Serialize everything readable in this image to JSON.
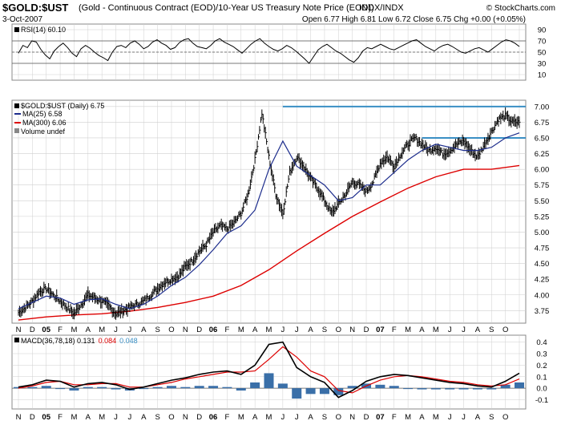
{
  "header": {
    "symbol": "$GOLD:$UST",
    "description": "(Gold - Continuous Contract (EOD)/10-Year US Treasury Note Price (EOD))",
    "exchange": "INDX/INDX",
    "date": "3-Oct-2007",
    "watermark": "© StockCharts.com",
    "ohlc": "Open 6.77  High 6.81  Low 6.72  Close 6.75  Chg +0.00 (+0.05%)"
  },
  "colors": {
    "price": "#000000",
    "ma25": "#1c2c8c",
    "ma300": "#dd0000",
    "hline": "#3a8fc4",
    "macd": "#000000",
    "signal": "#dd0000",
    "histogram": "#3a6fa8",
    "grid": "#cfcfcf"
  },
  "chart_data": [
    {
      "type": "line",
      "panel": "rsi",
      "label": "RSI(14) 60.10",
      "ylim": [
        0,
        100
      ],
      "yticks": [
        "90",
        "70",
        "50",
        "30",
        "10"
      ],
      "reference_lines": [
        70,
        50,
        30
      ],
      "series": [
        {
          "name": "RSI(14)",
          "values": [
            48,
            62,
            58,
            70,
            68,
            55,
            45,
            38,
            52,
            60,
            66,
            58,
            48,
            42,
            56,
            62,
            57,
            50,
            44,
            40,
            35,
            50,
            60,
            62,
            58,
            66,
            70,
            64,
            56,
            60,
            68,
            72,
            66,
            62,
            55,
            58,
            67,
            72,
            74,
            66,
            60,
            58,
            56,
            62,
            70,
            74,
            68,
            64,
            60,
            54,
            48,
            56,
            64,
            70,
            74,
            66,
            60,
            55,
            52,
            56,
            62,
            58,
            52,
            45,
            38,
            30,
            42,
            54,
            60,
            64,
            58,
            52,
            48,
            42,
            36,
            32,
            40,
            52,
            58,
            56,
            60,
            64,
            60,
            56,
            54,
            58,
            62,
            66,
            70,
            72,
            66,
            60,
            56,
            52,
            58,
            62,
            64,
            60,
            55,
            50,
            48,
            52,
            56,
            58,
            54,
            50,
            56,
            62,
            68,
            72,
            70,
            66,
            60
          ]
        }
      ]
    },
    {
      "type": "line",
      "panel": "price",
      "title": "$GOLD:$UST (Daily) 6.75",
      "legend": [
        {
          "label": "$GOLD:$UST (Daily) 6.75"
        },
        {
          "label": "MA(25) 6.58"
        },
        {
          "label": "MA(300) 6.06"
        },
        {
          "label": "Volume undef"
        }
      ],
      "ylim": [
        3.55,
        7.1
      ],
      "yticks": [
        "7.00",
        "6.75",
        "6.50",
        "6.25",
        "6.00",
        "5.75",
        "5.50",
        "5.25",
        "5.00",
        "4.75",
        "4.50",
        "4.25",
        "4.00",
        "3.75"
      ],
      "hlines": [
        7.0,
        6.5
      ],
      "xlabels": [
        "N",
        "D",
        "05",
        "F",
        "M",
        "A",
        "M",
        "J",
        "J",
        "A",
        "S",
        "O",
        "N",
        "D",
        "06",
        "F",
        "M",
        "A",
        "M",
        "J",
        "J",
        "A",
        "S",
        "O",
        "N",
        "D",
        "07",
        "F",
        "M",
        "A",
        "M",
        "J",
        "J",
        "A",
        "S",
        "O"
      ],
      "x_start": 0,
      "x_end": 36,
      "series": [
        {
          "name": "$GOLD:$UST",
          "x": [
            0,
            0.5,
            1,
            1.5,
            2,
            2.5,
            3,
            3.5,
            4,
            4.5,
            5,
            5.5,
            6,
            6.5,
            7,
            7.5,
            8,
            8.5,
            9,
            9.5,
            10,
            10.5,
            11,
            11.5,
            12,
            12.5,
            13,
            13.5,
            14,
            14.5,
            15,
            15.5,
            16,
            16.5,
            17,
            17.5,
            18,
            18.5,
            19,
            19.5,
            20,
            20.5,
            21,
            21.5,
            22,
            22.5,
            23,
            23.5,
            24,
            24.5,
            25,
            25.5,
            26,
            26.5,
            27,
            27.5,
            28,
            28.5,
            29,
            29.5,
            30,
            30.5,
            31,
            31.5,
            32,
            32.5,
            33,
            33.5,
            34,
            34.5,
            35,
            35.5,
            36
          ],
          "values": [
            3.72,
            3.8,
            3.9,
            4.05,
            4.1,
            4.0,
            3.9,
            3.8,
            3.7,
            3.85,
            4.0,
            3.95,
            3.9,
            3.82,
            3.7,
            3.75,
            3.8,
            3.85,
            3.9,
            4.0,
            4.1,
            4.2,
            4.25,
            4.3,
            4.45,
            4.55,
            4.7,
            4.8,
            5.0,
            5.1,
            5.05,
            5.15,
            5.3,
            5.6,
            6.15,
            6.9,
            6.2,
            5.6,
            5.3,
            5.95,
            6.2,
            6.05,
            5.85,
            5.7,
            5.5,
            5.3,
            5.45,
            5.6,
            5.8,
            5.75,
            5.65,
            5.8,
            6.1,
            6.2,
            6.05,
            6.25,
            6.4,
            6.5,
            6.4,
            6.3,
            6.35,
            6.25,
            6.3,
            6.4,
            6.45,
            6.3,
            6.2,
            6.4,
            6.6,
            6.8,
            6.85,
            6.75,
            6.75
          ]
        },
        {
          "name": "MA(25)",
          "x": [
            0,
            1,
            2,
            3,
            4,
            5,
            6,
            7,
            8,
            9,
            10,
            11,
            12,
            13,
            14,
            15,
            16,
            17,
            18,
            19,
            20,
            21,
            22,
            23,
            24,
            25,
            26,
            27,
            28,
            29,
            30,
            31,
            32,
            33,
            34,
            35,
            36
          ],
          "values": [
            3.78,
            3.88,
            3.98,
            3.95,
            3.85,
            3.92,
            3.94,
            3.85,
            3.78,
            3.85,
            3.98,
            4.15,
            4.28,
            4.48,
            4.72,
            4.98,
            5.1,
            5.35,
            6.0,
            6.45,
            6.05,
            5.9,
            5.75,
            5.5,
            5.55,
            5.75,
            5.75,
            5.95,
            6.15,
            6.3,
            6.4,
            6.35,
            6.3,
            6.3,
            6.35,
            6.5,
            6.58
          ]
        },
        {
          "name": "MA(300)",
          "x": [
            0,
            2,
            4,
            6,
            8,
            10,
            12,
            14,
            16,
            18,
            20,
            22,
            24,
            26,
            28,
            30,
            32,
            34,
            36
          ],
          "values": [
            3.6,
            3.65,
            3.68,
            3.7,
            3.74,
            3.8,
            3.88,
            3.98,
            4.15,
            4.4,
            4.7,
            4.98,
            5.25,
            5.48,
            5.7,
            5.88,
            6.0,
            6.0,
            6.06
          ]
        }
      ]
    },
    {
      "type": "line",
      "panel": "macd",
      "title": "MACD(36,78,18)",
      "legend": [
        {
          "label": "MACD(36,78,18) 0.131",
          "name": "MACD"
        },
        {
          "label": "0.084",
          "name": "Signal"
        },
        {
          "label": "0.048",
          "name": "Histogram"
        }
      ],
      "ylim": [
        -0.18,
        0.46
      ],
      "yticks": [
        "0.4",
        "0.3",
        "0.2",
        "0.1",
        "0.0",
        "-0.1"
      ],
      "xlabels": [
        "N",
        "D",
        "05",
        "F",
        "M",
        "A",
        "M",
        "J",
        "J",
        "A",
        "S",
        "O",
        "N",
        "D",
        "06",
        "F",
        "M",
        "A",
        "M",
        "J",
        "J",
        "A",
        "S",
        "O",
        "N",
        "D",
        "07",
        "F",
        "M",
        "A",
        "M",
        "J",
        "J",
        "A",
        "S",
        "O"
      ],
      "series": [
        {
          "name": "MACD",
          "x": [
            0,
            1,
            2,
            3,
            4,
            5,
            6,
            7,
            8,
            9,
            10,
            11,
            12,
            13,
            14,
            15,
            16,
            17,
            18,
            19,
            20,
            21,
            22,
            23,
            24,
            25,
            26,
            27,
            28,
            29,
            30,
            31,
            32,
            33,
            34,
            35,
            36
          ],
          "values": [
            0.01,
            0.03,
            0.07,
            0.06,
            0.01,
            0.04,
            0.05,
            0.03,
            -0.01,
            0.01,
            0.04,
            0.07,
            0.09,
            0.12,
            0.14,
            0.15,
            0.12,
            0.2,
            0.38,
            0.4,
            0.18,
            0.1,
            0.05,
            -0.08,
            -0.02,
            0.06,
            0.1,
            0.12,
            0.11,
            0.09,
            0.07,
            0.05,
            0.04,
            0.02,
            0.01,
            0.06,
            0.13
          ]
        },
        {
          "name": "Signal",
          "x": [
            0,
            1,
            2,
            3,
            4,
            5,
            6,
            7,
            8,
            9,
            10,
            11,
            12,
            13,
            14,
            15,
            16,
            17,
            18,
            19,
            20,
            21,
            22,
            23,
            24,
            25,
            26,
            27,
            28,
            29,
            30,
            31,
            32,
            33,
            34,
            35,
            36
          ],
          "values": [
            0.0,
            0.02,
            0.05,
            0.06,
            0.03,
            0.03,
            0.04,
            0.04,
            0.01,
            0.01,
            0.03,
            0.05,
            0.08,
            0.1,
            0.12,
            0.14,
            0.14,
            0.15,
            0.25,
            0.36,
            0.27,
            0.15,
            0.1,
            -0.02,
            -0.04,
            0.02,
            0.07,
            0.1,
            0.11,
            0.1,
            0.08,
            0.06,
            0.05,
            0.03,
            0.02,
            0.03,
            0.08
          ]
        },
        {
          "name": "Histogram",
          "x": [
            0,
            1,
            2,
            3,
            4,
            5,
            6,
            7,
            8,
            9,
            10,
            11,
            12,
            13,
            14,
            15,
            16,
            17,
            18,
            19,
            20,
            21,
            22,
            23,
            24,
            25,
            26,
            27,
            28,
            29,
            30,
            31,
            32,
            33,
            34,
            35,
            36
          ],
          "values": [
            0.01,
            0.01,
            0.02,
            0.0,
            -0.02,
            0.01,
            0.01,
            -0.01,
            -0.02,
            0.0,
            0.01,
            0.02,
            0.01,
            0.02,
            0.02,
            0.01,
            -0.02,
            0.05,
            0.13,
            0.04,
            -0.09,
            -0.05,
            -0.05,
            -0.06,
            0.02,
            0.04,
            0.03,
            0.02,
            0.0,
            -0.01,
            -0.01,
            -0.01,
            -0.01,
            -0.01,
            -0.01,
            0.03,
            0.05
          ]
        }
      ]
    }
  ]
}
